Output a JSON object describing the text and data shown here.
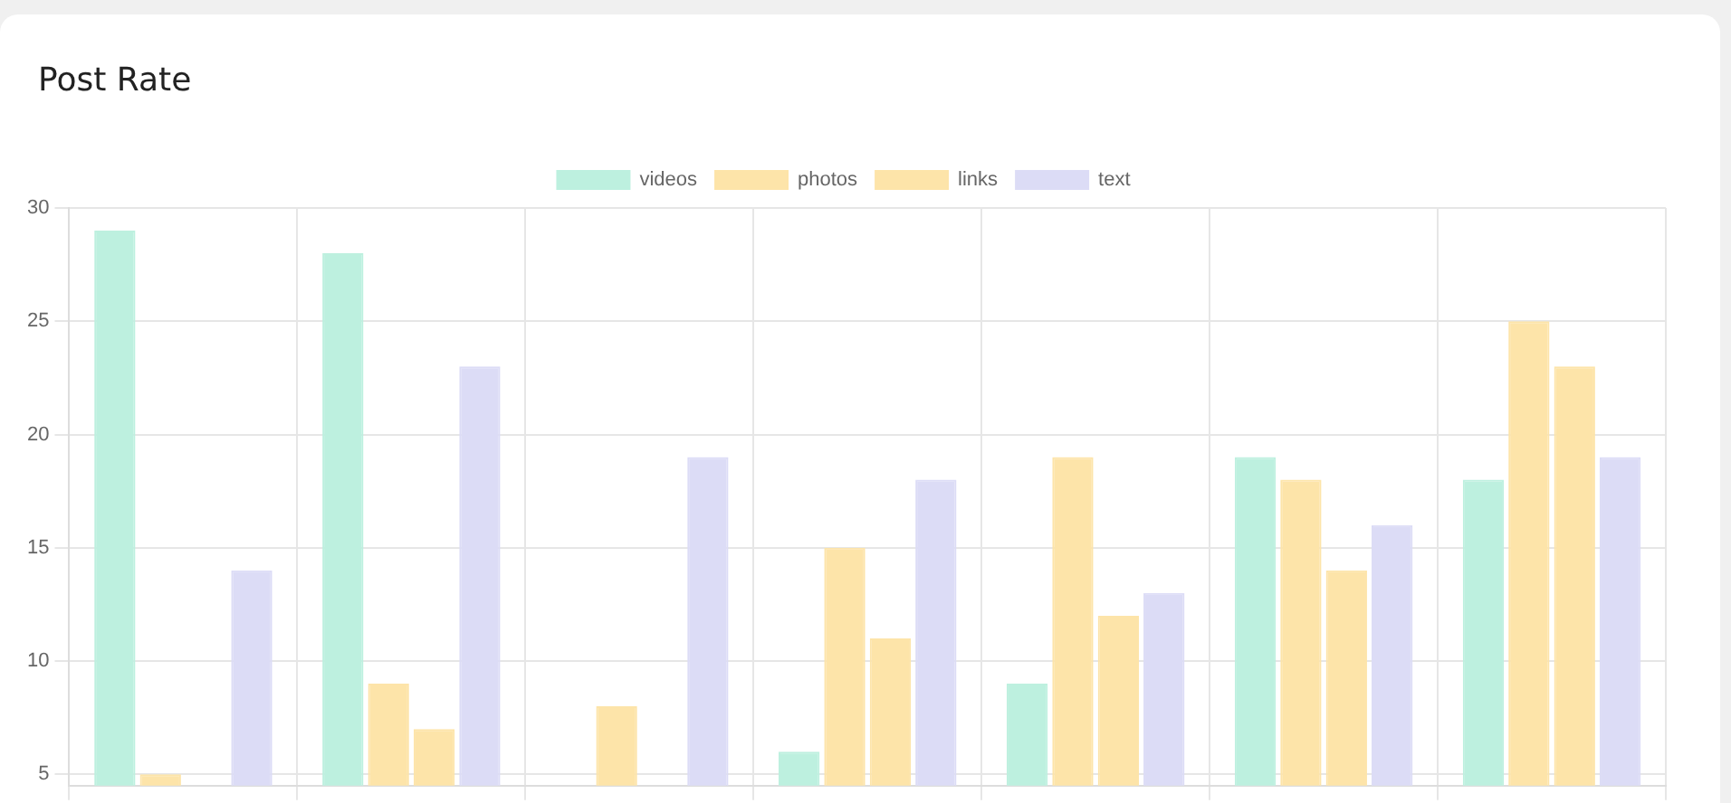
{
  "chart_data": {
    "type": "bar",
    "title": "Post Rate",
    "categories": [
      null,
      null,
      null,
      null,
      null,
      null,
      null
    ],
    "series": [
      {
        "name": "videos",
        "color": "#bdf0df",
        "values": [
          29,
          28,
          null,
          6,
          9,
          19,
          18
        ]
      },
      {
        "name": "photos",
        "color": "#fde4a9",
        "values": [
          5,
          9,
          8,
          15,
          19,
          18,
          25
        ]
      },
      {
        "name": "links",
        "color": "#fde4a9",
        "values": [
          null,
          7,
          null,
          11,
          12,
          14,
          23
        ]
      },
      {
        "name": "text",
        "color": "#dcdcf6",
        "values": [
          14,
          23,
          19,
          18,
          13,
          16,
          19
        ]
      }
    ],
    "ylim": [
      4.5,
      30
    ],
    "yticks": [
      5,
      10,
      15,
      20,
      25,
      30
    ],
    "grid": true,
    "legend": "top",
    "tick_labels": "y"
  }
}
